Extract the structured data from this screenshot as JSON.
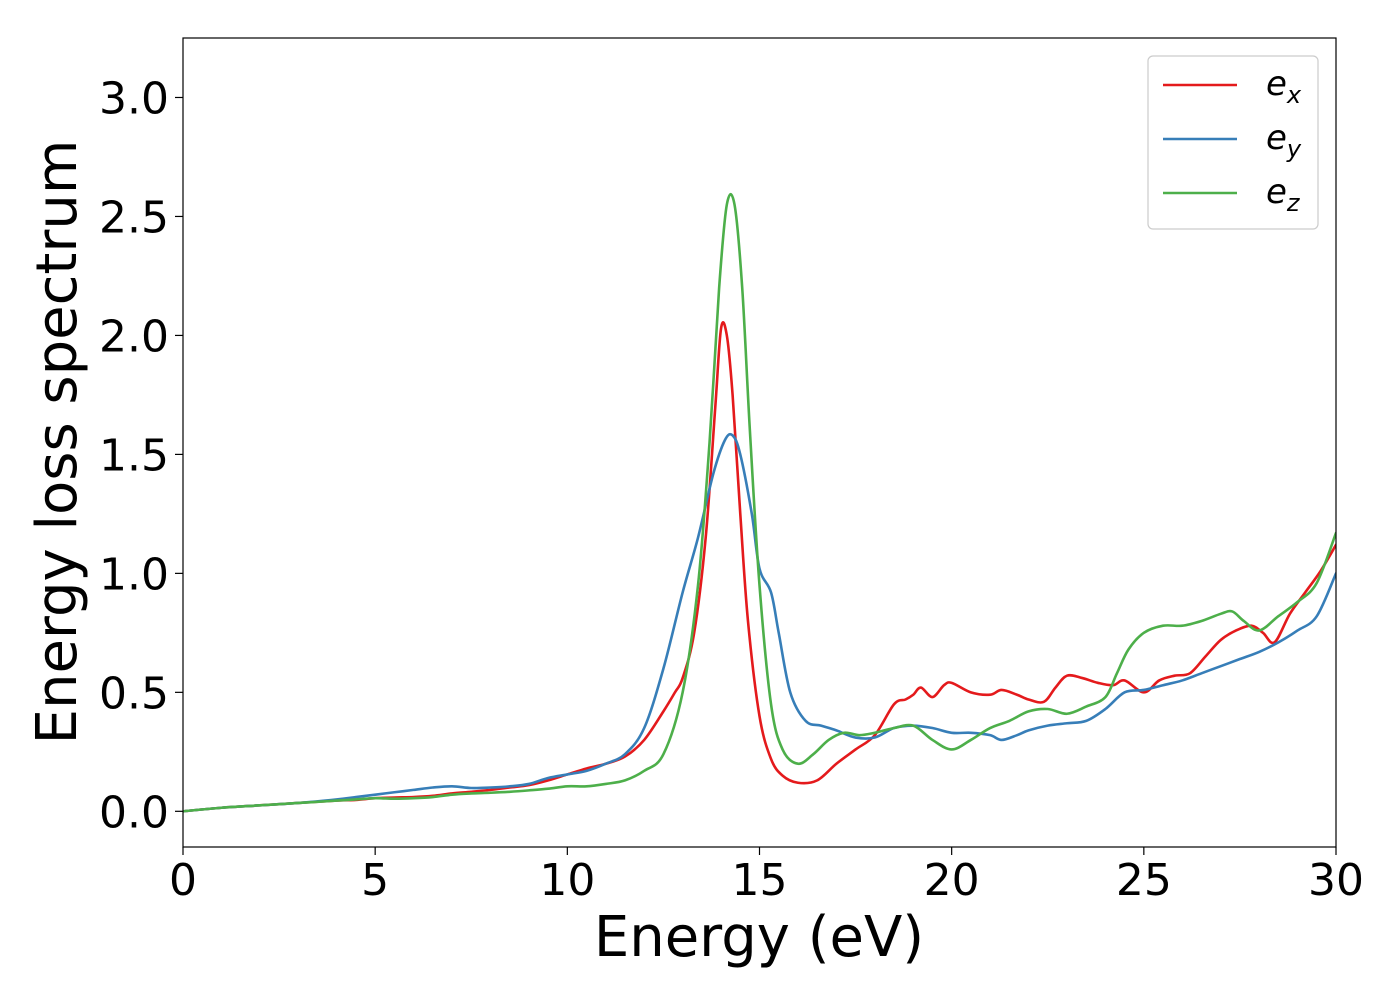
{
  "chart_data": {
    "type": "line",
    "xlabel": "Energy (eV)",
    "ylabel": "Energy loss spectrum",
    "xlim": [
      0,
      30
    ],
    "ylim": [
      -0.15,
      3.25
    ],
    "xticks": [
      "0",
      "5",
      "10",
      "15",
      "20",
      "25",
      "30"
    ],
    "yticks": [
      "0.0",
      "0.5",
      "1.0",
      "1.5",
      "2.0",
      "2.5",
      "3.0"
    ],
    "grid": false,
    "legend_position": "top-right",
    "series": [
      {
        "name": "e_x",
        "base": "e",
        "sub": "x",
        "color": "#e41a1c",
        "x": [
          0,
          1,
          2,
          3,
          4,
          4.5,
          5,
          5.5,
          6,
          6.5,
          7,
          7.5,
          8,
          8.5,
          9,
          9.5,
          10,
          10.5,
          11,
          11.5,
          12,
          12.5,
          12.8,
          13,
          13.3,
          13.6,
          13.85,
          14.0,
          14.15,
          14.3,
          14.5,
          14.7,
          15.0,
          15.3,
          15.6,
          16.0,
          16.5,
          17.0,
          17.5,
          18.0,
          18.5,
          18.8,
          19.0,
          19.2,
          19.5,
          19.8,
          20.0,
          20.5,
          21.0,
          21.3,
          21.7,
          22.0,
          22.4,
          22.7,
          23.0,
          23.4,
          23.8,
          24.2,
          24.5,
          25.0,
          25.4,
          25.8,
          26.2,
          26.6,
          27.0,
          27.4,
          27.8,
          28.1,
          28.4,
          28.8,
          29.2,
          29.6,
          30.0
        ],
        "y": [
          0.0,
          0.015,
          0.025,
          0.035,
          0.045,
          0.048,
          0.055,
          0.058,
          0.06,
          0.065,
          0.075,
          0.082,
          0.09,
          0.1,
          0.11,
          0.13,
          0.155,
          0.18,
          0.2,
          0.23,
          0.3,
          0.42,
          0.5,
          0.56,
          0.75,
          1.15,
          1.7,
          2.03,
          2.0,
          1.75,
          1.25,
          0.8,
          0.4,
          0.22,
          0.15,
          0.12,
          0.13,
          0.2,
          0.26,
          0.32,
          0.45,
          0.47,
          0.49,
          0.52,
          0.48,
          0.53,
          0.54,
          0.5,
          0.49,
          0.51,
          0.49,
          0.47,
          0.46,
          0.52,
          0.57,
          0.56,
          0.54,
          0.53,
          0.55,
          0.5,
          0.55,
          0.57,
          0.58,
          0.65,
          0.72,
          0.76,
          0.78,
          0.75,
          0.71,
          0.83,
          0.92,
          1.01,
          1.12
        ]
      },
      {
        "name": "e_y",
        "base": "e",
        "sub": "y",
        "color": "#377eb8",
        "x": [
          0,
          1,
          2,
          3,
          4,
          4.5,
          5,
          5.5,
          6,
          6.5,
          7,
          7.5,
          8,
          8.5,
          9,
          9.5,
          10,
          10.5,
          11,
          11.5,
          12,
          12.5,
          13,
          13.4,
          13.8,
          14.1,
          14.3,
          14.5,
          14.8,
          15.0,
          15.3,
          15.5,
          15.8,
          16.2,
          16.6,
          17.0,
          17.5,
          18.0,
          18.5,
          19.0,
          19.5,
          20.0,
          20.5,
          21.0,
          21.3,
          21.7,
          22.0,
          22.5,
          23.0,
          23.5,
          24.0,
          24.5,
          25.0,
          25.5,
          26.0,
          26.5,
          27.0,
          27.5,
          28.0,
          28.5,
          29.0,
          29.5,
          30.0
        ],
        "y": [
          0.0,
          0.015,
          0.025,
          0.035,
          0.05,
          0.06,
          0.07,
          0.08,
          0.09,
          0.1,
          0.105,
          0.098,
          0.1,
          0.105,
          0.115,
          0.14,
          0.155,
          0.17,
          0.2,
          0.24,
          0.35,
          0.6,
          0.92,
          1.15,
          1.42,
          1.56,
          1.58,
          1.5,
          1.25,
          1.02,
          0.92,
          0.75,
          0.5,
          0.38,
          0.36,
          0.34,
          0.31,
          0.31,
          0.35,
          0.36,
          0.35,
          0.33,
          0.33,
          0.32,
          0.3,
          0.32,
          0.34,
          0.36,
          0.37,
          0.38,
          0.43,
          0.5,
          0.51,
          0.53,
          0.55,
          0.58,
          0.61,
          0.64,
          0.67,
          0.71,
          0.76,
          0.82,
          1.0
        ]
      },
      {
        "name": "e_z",
        "base": "e",
        "sub": "z",
        "color": "#4daf4a",
        "x": [
          0,
          1,
          2,
          3,
          4,
          4.5,
          5,
          5.5,
          6,
          6.5,
          7,
          7.5,
          8,
          8.5,
          9,
          9.5,
          10,
          10.5,
          11,
          11.5,
          12,
          12.5,
          13,
          13.4,
          13.7,
          13.95,
          14.15,
          14.35,
          14.55,
          14.75,
          15.0,
          15.3,
          15.6,
          16.0,
          16.4,
          16.8,
          17.2,
          17.6,
          18.0,
          18.5,
          19.0,
          19.5,
          20.0,
          20.5,
          21.0,
          21.5,
          22.0,
          22.5,
          23.0,
          23.5,
          24.0,
          24.3,
          24.6,
          25.0,
          25.5,
          26.0,
          26.5,
          27.0,
          27.3,
          27.6,
          28.0,
          28.5,
          29.0,
          29.5,
          30.0
        ],
        "y": [
          0.0,
          0.015,
          0.025,
          0.035,
          0.045,
          0.05,
          0.055,
          0.053,
          0.055,
          0.06,
          0.07,
          0.075,
          0.078,
          0.082,
          0.088,
          0.095,
          0.105,
          0.105,
          0.115,
          0.13,
          0.17,
          0.24,
          0.5,
          0.95,
          1.55,
          2.2,
          2.55,
          2.55,
          2.2,
          1.6,
          0.95,
          0.45,
          0.26,
          0.2,
          0.24,
          0.3,
          0.33,
          0.32,
          0.33,
          0.35,
          0.36,
          0.3,
          0.26,
          0.3,
          0.35,
          0.38,
          0.42,
          0.43,
          0.41,
          0.44,
          0.48,
          0.58,
          0.68,
          0.75,
          0.78,
          0.78,
          0.8,
          0.83,
          0.84,
          0.8,
          0.76,
          0.82,
          0.88,
          0.96,
          1.17
        ]
      }
    ]
  }
}
